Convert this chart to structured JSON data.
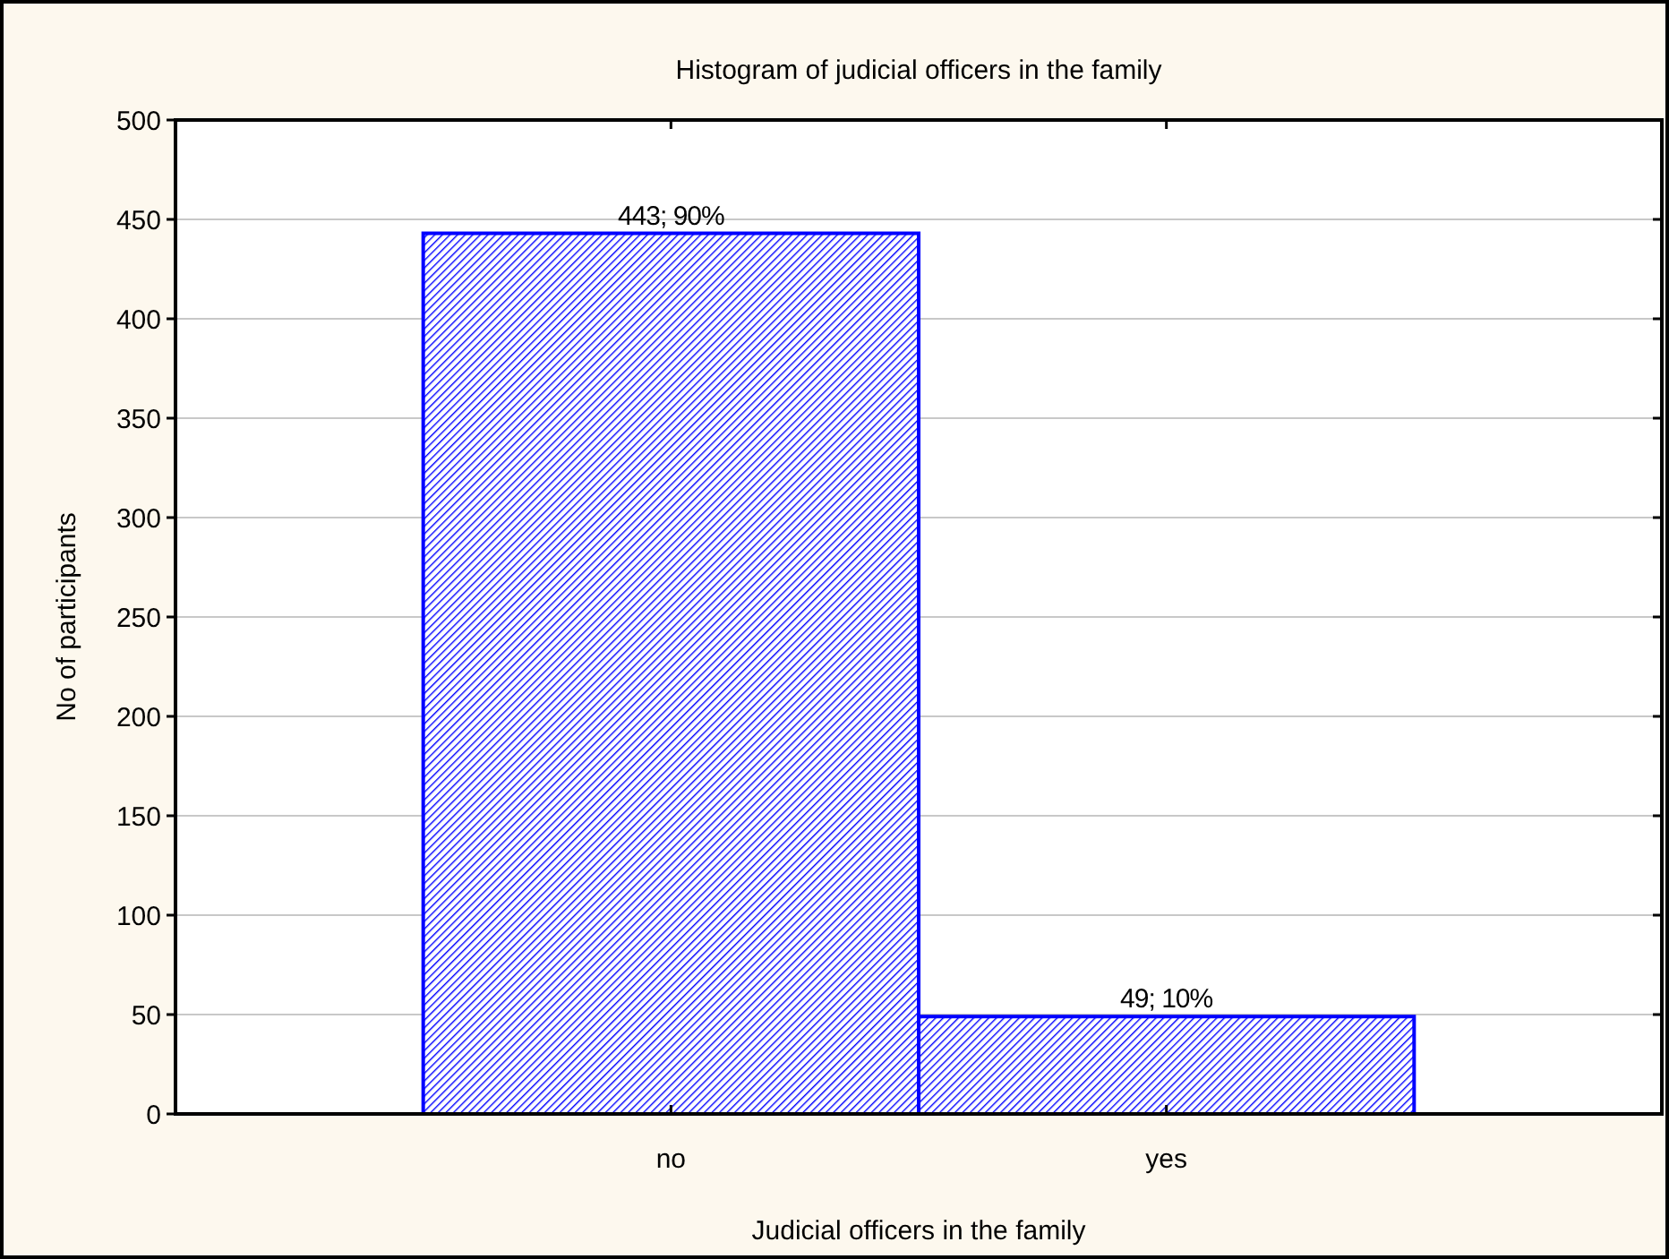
{
  "chart_data": {
    "type": "bar",
    "title": "Histogram of judicial officers in the family",
    "xlabel": "Judicial officers in the family",
    "ylabel": "No of participants",
    "categories": [
      "no",
      "yes"
    ],
    "values": [
      443,
      49
    ],
    "color": "#0000ff",
    "value_labels": [
      "443; 90%",
      "49; 10%"
    ],
    "ylim": [
      0,
      500
    ],
    "yticks": [
      0,
      50,
      100,
      150,
      200,
      250,
      300,
      350,
      400,
      450,
      500
    ],
    "grid": "y"
  }
}
